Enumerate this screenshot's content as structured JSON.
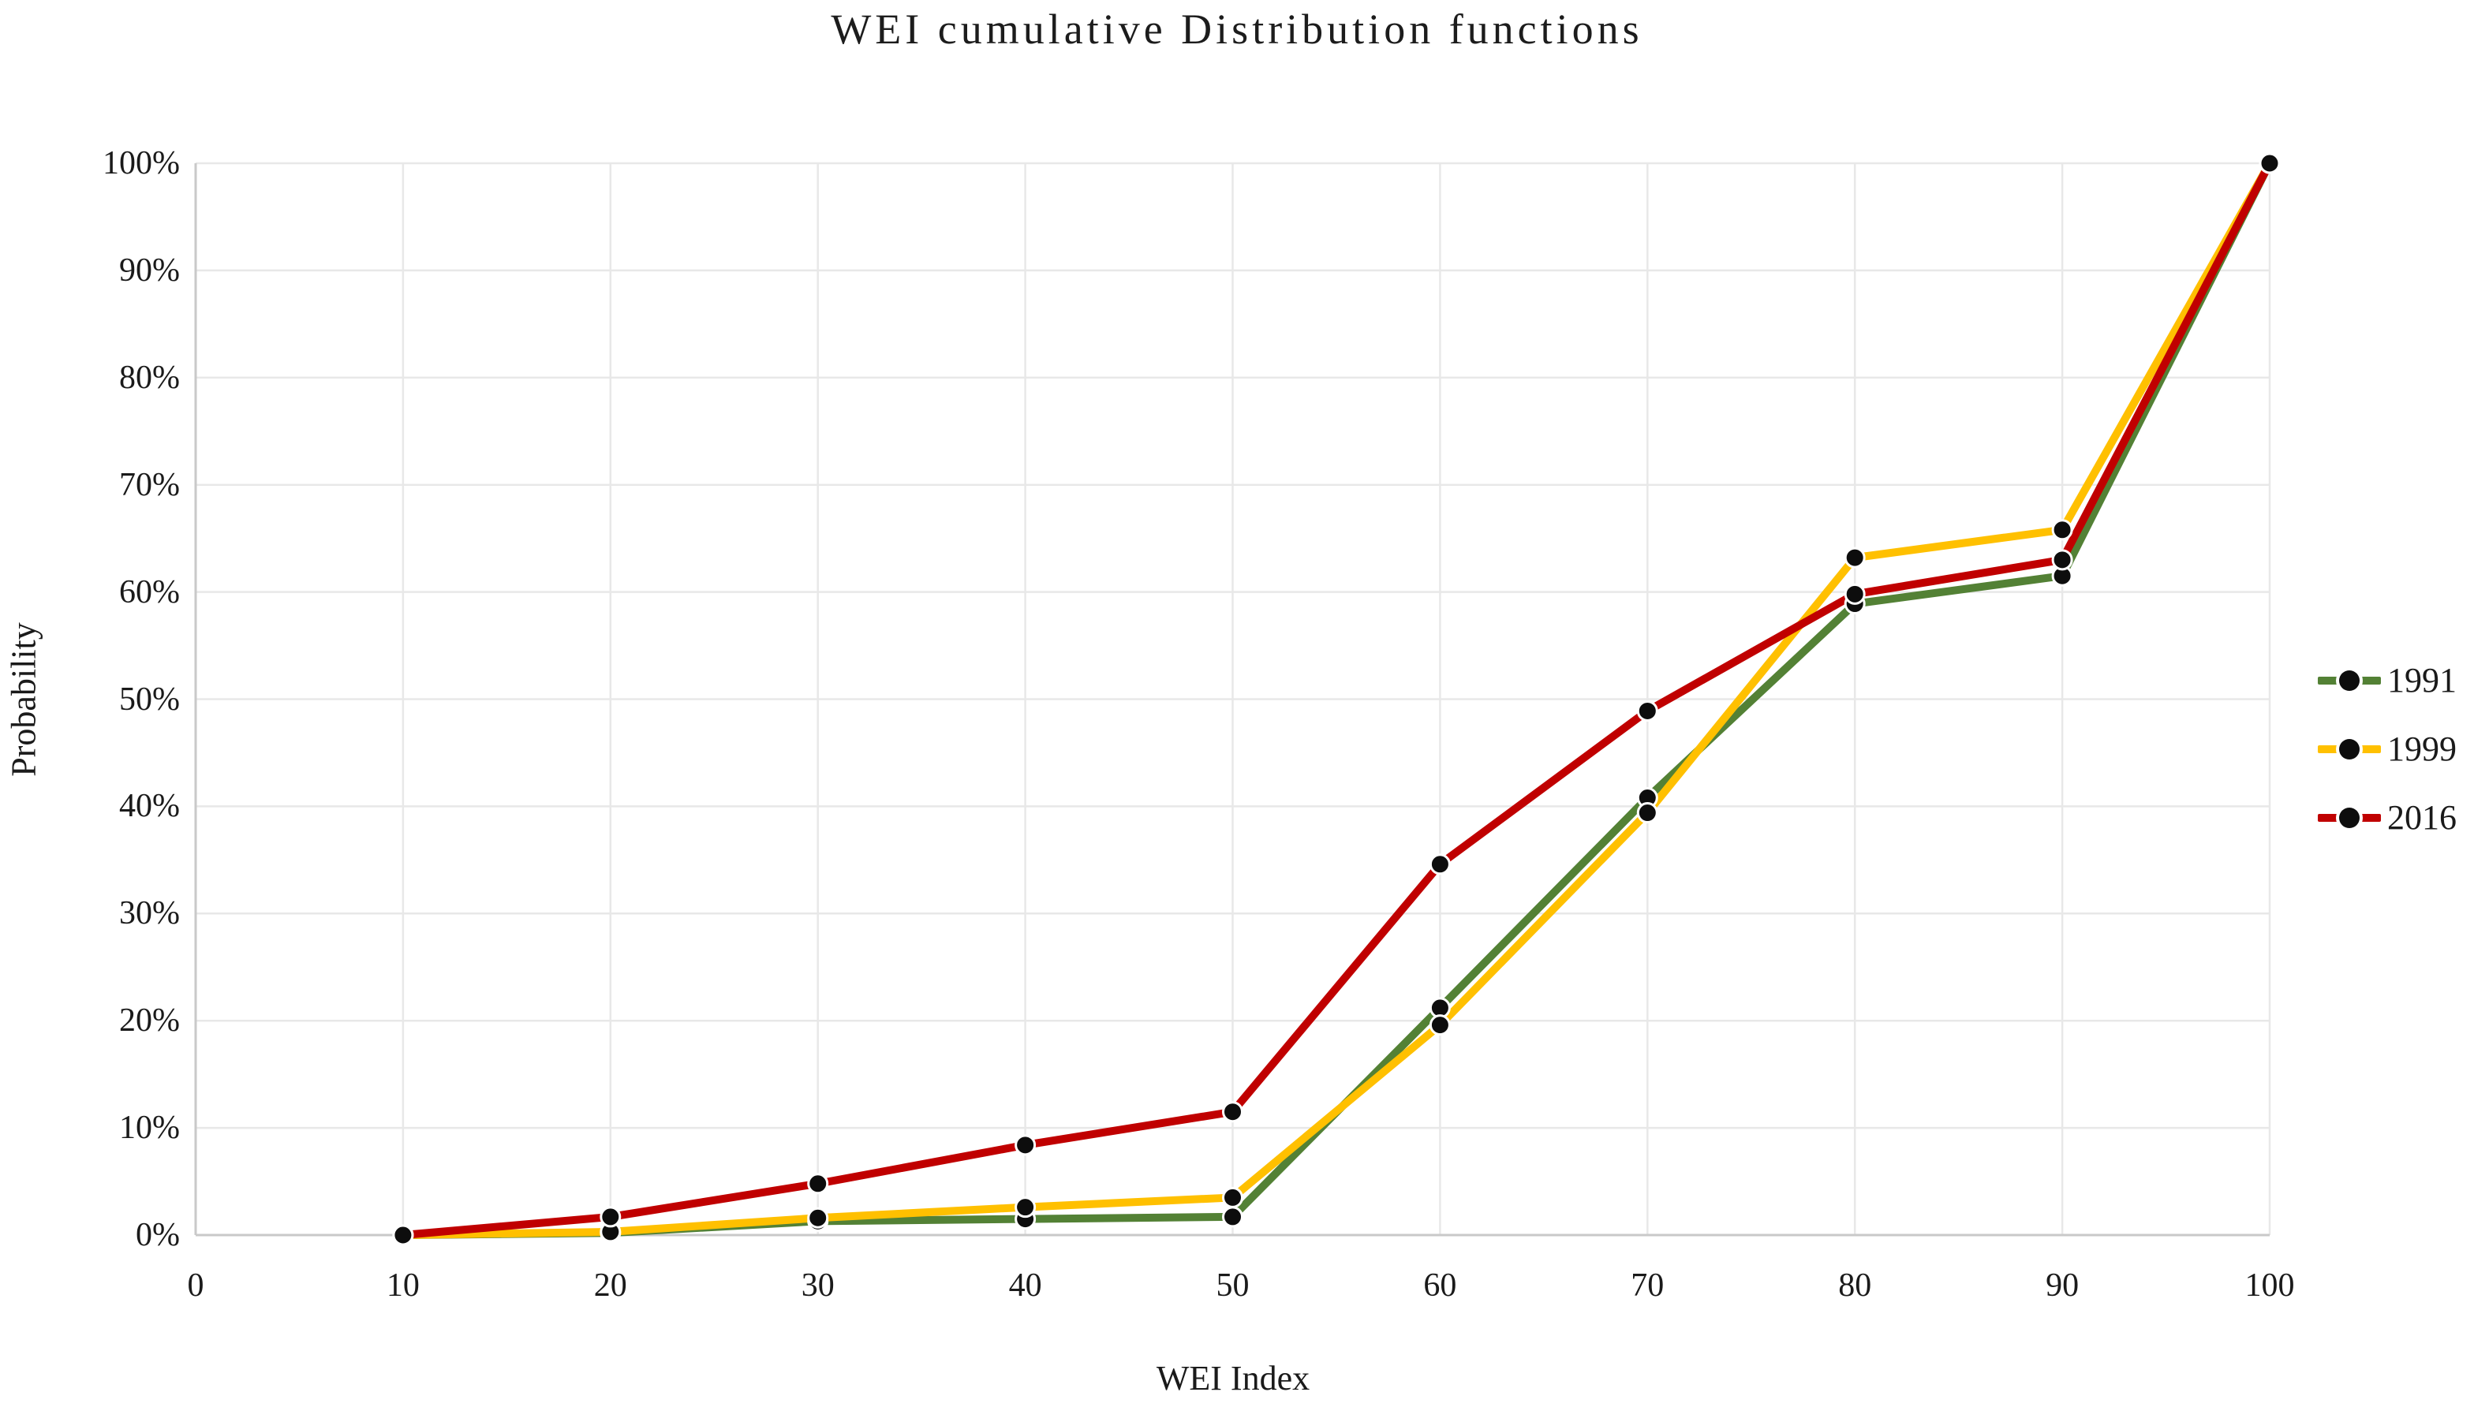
{
  "title": "WEI cumulative Distribution functions",
  "axis": {
    "x_title": "WEI Index",
    "y_title": "Probability"
  },
  "legend": {
    "position": "right",
    "items": [
      "1991",
      "1999",
      "2016"
    ]
  },
  "colors": {
    "series_1991": "#538135",
    "series_1999": "#FFC000",
    "series_2016": "#C00000",
    "marker": "#0d0d0d",
    "marker_ring": "#ffffff",
    "gridline": "#e8e8e8",
    "axis_line": "#c9c9c9",
    "background": "#ffffff",
    "text": "#1a1a1a"
  },
  "chart_data": {
    "type": "line",
    "title": "WEI cumulative Distribution functions",
    "xlabel": "WEI Index",
    "ylabel": "Probability",
    "x": [
      10,
      20,
      30,
      40,
      50,
      60,
      70,
      80,
      90,
      100
    ],
    "series": [
      {
        "name": "1991",
        "color": "#538135",
        "values": [
          0,
          0.2,
          1.3,
          1.5,
          1.7,
          21.2,
          40.8,
          58.9,
          61.5,
          100
        ]
      },
      {
        "name": "1999",
        "color": "#FFC000",
        "values": [
          0,
          0.3,
          1.6,
          2.6,
          3.5,
          19.6,
          39.4,
          63.2,
          65.8,
          100
        ]
      },
      {
        "name": "2016",
        "color": "#C00000",
        "values": [
          0,
          1.7,
          4.8,
          8.4,
          11.5,
          34.6,
          48.9,
          59.8,
          63.0,
          100
        ]
      }
    ],
    "xlim": [
      0,
      100
    ],
    "ylim": [
      0,
      100
    ],
    "x_ticks": [
      0,
      10,
      20,
      30,
      40,
      50,
      60,
      70,
      80,
      90,
      100
    ],
    "y_ticks": [
      0,
      10,
      20,
      30,
      40,
      50,
      60,
      70,
      80,
      90,
      100
    ],
    "y_tick_labels": [
      "0%",
      "10%",
      "20%",
      "30%",
      "40%",
      "50%",
      "60%",
      "70%",
      "80%",
      "90%",
      "100%"
    ],
    "grid": true,
    "legend_position": "right",
    "marker": {
      "shape": "circle",
      "color": "#0d0d0d"
    }
  }
}
